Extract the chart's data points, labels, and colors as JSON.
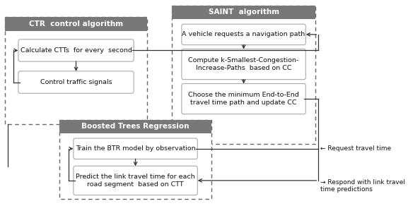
{
  "fig_width": 5.77,
  "fig_height": 2.92,
  "bg_color": "#ffffff",
  "header_color": "#787878",
  "header_text_color": "#ffffff",
  "box_edge_color": "#aaaaaa",
  "dashed_edge_color": "#666666",
  "arrow_color": "#333333",
  "ctr_header": "CTR  control algorithm",
  "ctr_box1": "Calculate CTTs  for every  second",
  "ctr_box2": "Control traffic signals",
  "saint_header": "SAINT  algorithm",
  "saint_box1": "A vehicle requests a navigation path",
  "saint_box2": "Compute k-Smallest-Congestion-\nIncrease-Paths  based on CC",
  "saint_box3": "Choose the minimum End-to-End\ntravel time path and update CC",
  "btr_header": "Boosted Trees Regression",
  "btr_box1": "Train the BTR model by observation",
  "btr_box2": "Predict the link travel time for each\nroad segment  based on CTT",
  "label_request": "← Request travel time",
  "label_respond": "→ Respond with link travel\ntime predictions"
}
